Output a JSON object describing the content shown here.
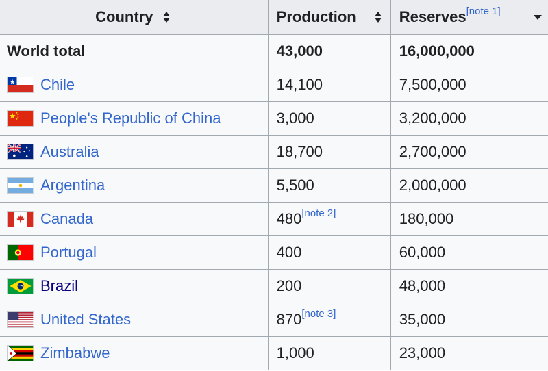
{
  "table": {
    "headers": {
      "country": "Country",
      "production": "Production",
      "reserves": "Reserves",
      "reserves_note": "[note 1]"
    },
    "total": {
      "label": "World total",
      "production": "43,000",
      "reserves": "16,000,000"
    },
    "rows": [
      {
        "country": "Chile",
        "flag": "chile-flag-icon",
        "production": "14,100",
        "production_note": "",
        "reserves": "7,500,000"
      },
      {
        "country": "People's Republic of China",
        "flag": "china-flag-icon",
        "production": "3,000",
        "production_note": "",
        "reserves": "3,200,000"
      },
      {
        "country": "Australia",
        "flag": "australia-flag-icon",
        "production": "18,700",
        "production_note": "",
        "reserves": "2,700,000"
      },
      {
        "country": "Argentina",
        "flag": "argentina-flag-icon",
        "production": "5,500",
        "production_note": "",
        "reserves": "2,000,000"
      },
      {
        "country": "Canada",
        "flag": "canada-flag-icon",
        "production": "480",
        "production_note": "[note 2]",
        "reserves": "180,000"
      },
      {
        "country": "Portugal",
        "flag": "portugal-flag-icon",
        "production": "400",
        "production_note": "",
        "reserves": "60,000"
      },
      {
        "country": "Brazil",
        "flag": "brazil-flag-icon",
        "production": "200",
        "production_note": "",
        "reserves": "48,000"
      },
      {
        "country": "United States",
        "flag": "usa-flag-icon",
        "production": "870",
        "production_note": "[note 3]",
        "reserves": "35,000"
      },
      {
        "country": "Zimbabwe",
        "flag": "zimbabwe-flag-icon",
        "production": "1,000",
        "production_note": "",
        "reserves": "23,000"
      }
    ]
  },
  "colors": {
    "link": "#3366cc",
    "visited_link": "#0b0080",
    "header_bg": "#eaecf0",
    "cell_bg": "#f8f9fa",
    "border": "#a2a9b1"
  }
}
